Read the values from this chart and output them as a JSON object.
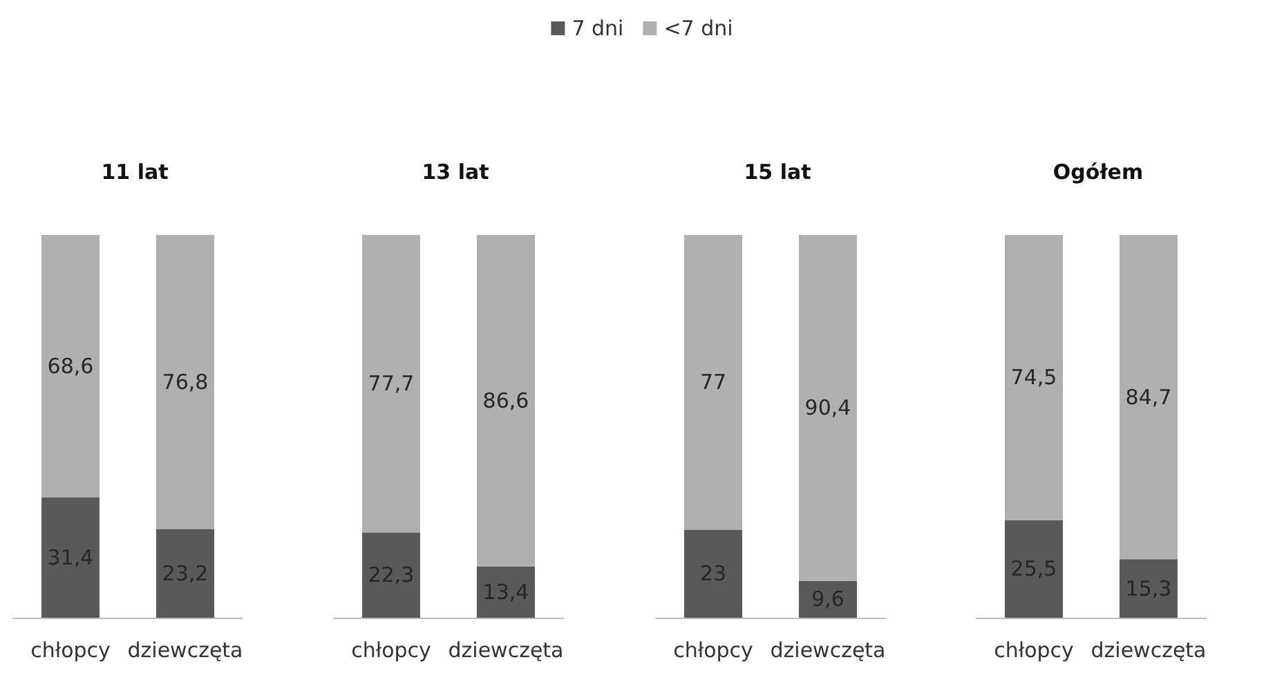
{
  "chart_data": [
    {
      "type": "bar",
      "title": "11 lat",
      "categories": [
        "chłopcy",
        "dziewczęta"
      ],
      "stacked": true,
      "legend": "top",
      "series": [
        {
          "name": "7 dni",
          "color": "#595959",
          "values": [
            31.4,
            23.2
          ],
          "value_labels": [
            "31,4",
            "23,2"
          ]
        },
        {
          "name": "<7 dni",
          "color": "#b0b0b0",
          "values": [
            68.6,
            76.8
          ],
          "value_labels": [
            "68,6",
            "76,8"
          ]
        }
      ]
    },
    {
      "type": "bar",
      "title": "13 lat",
      "categories": [
        "chłopcy",
        "dziewczęta"
      ],
      "stacked": true,
      "series": [
        {
          "color": "#595959",
          "values": [
            22.3,
            13.4
          ],
          "value_labels": [
            "22,3",
            "13,4"
          ]
        },
        {
          "color": "#b0b0b0",
          "values": [
            77.7,
            86.6
          ],
          "value_labels": [
            "77,7",
            "86,6"
          ]
        }
      ]
    },
    {
      "type": "bar",
      "title": "15 lat",
      "categories": [
        "chłopcy",
        "dziewczęta"
      ],
      "stacked": true,
      "series": [
        {
          "color": "#595959",
          "values": [
            23,
            9.6
          ],
          "value_labels": [
            "23",
            "9,6"
          ]
        },
        {
          "color": "#b0b0b0",
          "values": [
            77,
            90.4
          ],
          "value_labels": [
            "77",
            "90,4"
          ]
        }
      ]
    },
    {
      "type": "bar",
      "title": "Ogółem",
      "categories": [
        "chłopcy",
        "dziewczęta"
      ],
      "stacked": true,
      "series": [
        {
          "color": "#595959",
          "values": [
            25.5,
            15.3
          ],
          "value_labels": [
            "25,5",
            "15,3"
          ]
        },
        {
          "color": "#b0b0b0",
          "values": [
            74.5,
            84.7
          ],
          "value_labels": [
            "74,5",
            "84,7"
          ]
        }
      ]
    }
  ]
}
